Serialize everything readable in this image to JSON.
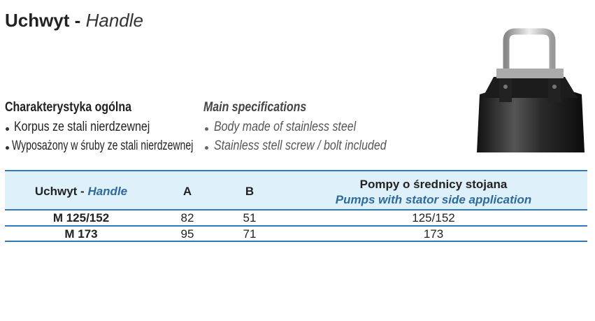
{
  "header": {
    "title_bold": "Uchwyt -",
    "title_italic": "Handle"
  },
  "specs": {
    "pl": {
      "heading": "Charakterystyka ogólna",
      "items": [
        "Korpus ze stali nierdzewnej",
        "Wyposażony w śruby ze stali nierdzewnej"
      ]
    },
    "en": {
      "heading": "Main specifications",
      "items": [
        "Body made of stainless steel",
        "Stainless stell screw / bolt included"
      ]
    }
  },
  "table": {
    "columns": [
      {
        "bold": "Uchwyt -",
        "italic": "Handle"
      },
      {
        "bold": "A"
      },
      {
        "bold": "B"
      },
      {
        "bold": "Pompy o średnicy stojana",
        "italic": "Pumps with stator side application"
      }
    ],
    "rows": [
      [
        "M 125/152",
        82,
        51,
        "125/152"
      ],
      [
        "M 173",
        95,
        71,
        173
      ]
    ]
  }
}
